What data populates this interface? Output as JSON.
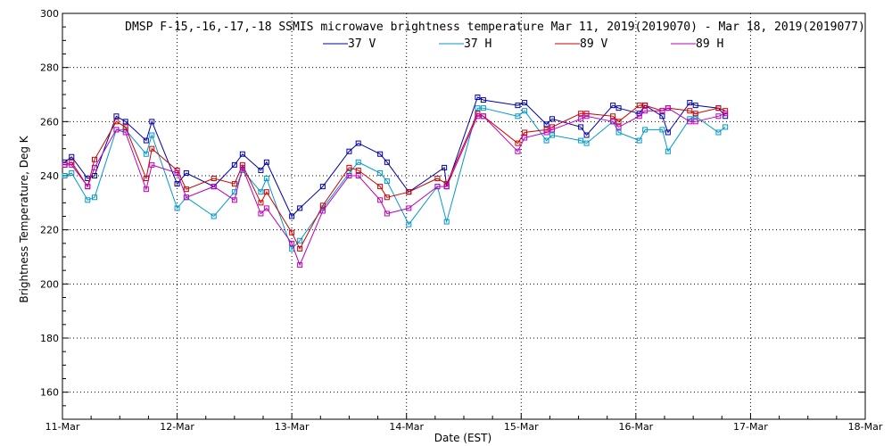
{
  "chart_data": {
    "type": "line",
    "title": "DMSP F-15,-16,-17,-18 SSMIS microwave brightness temperature Mar 11, 2019(2019070) - Mar 18, 2019(2019077)",
    "xlabel": "Date (EST)",
    "ylabel": "Brightness Temperature, Deg K",
    "xlim": [
      0,
      7
    ],
    "ylim": [
      150,
      300
    ],
    "x_ticks": [
      0,
      1,
      2,
      3,
      4,
      5,
      6,
      7
    ],
    "x_tick_labels": [
      "11-Mar",
      "12-Mar",
      "13-Mar",
      "14-Mar",
      "15-Mar",
      "16-Mar",
      "17-Mar",
      "18-Mar"
    ],
    "y_ticks": [
      160,
      180,
      200,
      220,
      240,
      260,
      280,
      300
    ],
    "grid": true,
    "legend_position": "top",
    "series": [
      {
        "name": "37 V",
        "color": "#0000aa",
        "x": [
          0.02,
          0.08,
          0.22,
          0.28,
          0.47,
          0.55,
          0.73,
          0.78,
          1.0,
          1.08,
          1.32,
          1.5,
          1.57,
          1.73,
          1.78,
          2.0,
          2.07,
          2.27,
          2.5,
          2.58,
          2.77,
          2.83,
          3.02,
          3.33,
          3.35,
          3.62,
          3.67,
          3.97,
          4.03,
          4.22,
          4.27,
          4.52,
          4.57,
          4.8,
          4.85,
          5.03,
          5.08,
          5.23,
          5.28,
          5.47,
          5.52,
          5.72,
          5.78
        ],
        "y": [
          245,
          247,
          239,
          240,
          262,
          260,
          253,
          260,
          237,
          241,
          236,
          244,
          248,
          242,
          245,
          225,
          228,
          236,
          249,
          252,
          248,
          245,
          234,
          243,
          236,
          269,
          268,
          266,
          267,
          259,
          261,
          258,
          255,
          266,
          265,
          263,
          266,
          262,
          256,
          267,
          266,
          265,
          262
        ]
      },
      {
        "name": "37 H",
        "color": "#0099cc",
        "x": [
          0.02,
          0.08,
          0.22,
          0.28,
          0.47,
          0.55,
          0.73,
          0.78,
          1.0,
          1.08,
          1.32,
          1.5,
          1.57,
          1.73,
          1.78,
          2.0,
          2.07,
          2.27,
          2.5,
          2.58,
          2.77,
          2.83,
          3.02,
          3.27,
          3.35,
          3.62,
          3.67,
          3.97,
          4.03,
          4.22,
          4.27,
          4.52,
          4.57,
          4.8,
          4.85,
          5.03,
          5.08,
          5.23,
          5.28,
          5.47,
          5.52,
          5.72,
          5.78
        ],
        "y": [
          240,
          241,
          231,
          232,
          257,
          257,
          248,
          255,
          228,
          232,
          225,
          234,
          242,
          234,
          239,
          213,
          216,
          228,
          241,
          245,
          241,
          238,
          222,
          236,
          223,
          265,
          265,
          262,
          264,
          253,
          255,
          253,
          252,
          260,
          256,
          253,
          257,
          257,
          249,
          261,
          262,
          256,
          258
        ]
      },
      {
        "name": "89 V",
        "color": "#cc0000",
        "x": [
          0.02,
          0.08,
          0.22,
          0.28,
          0.47,
          0.55,
          0.73,
          0.78,
          1.0,
          1.08,
          1.32,
          1.5,
          1.57,
          1.73,
          1.78,
          2.0,
          2.07,
          2.27,
          2.5,
          2.58,
          2.77,
          2.83,
          3.02,
          3.27,
          3.35,
          3.62,
          3.67,
          3.97,
          4.03,
          4.22,
          4.27,
          4.52,
          4.57,
          4.8,
          4.85,
          5.03,
          5.08,
          5.23,
          5.28,
          5.47,
          5.52,
          5.72,
          5.78
        ],
        "y": [
          244,
          245,
          236,
          246,
          260,
          258,
          239,
          250,
          242,
          235,
          239,
          237,
          244,
          230,
          234,
          219,
          213,
          229,
          243,
          242,
          236,
          232,
          234,
          239,
          237,
          263,
          262,
          252,
          256,
          257,
          258,
          263,
          263,
          262,
          260,
          266,
          266,
          264,
          265,
          264,
          263,
          265,
          264
        ]
      },
      {
        "name": "89 H",
        "color": "#bb00bb",
        "x": [
          0.02,
          0.08,
          0.22,
          0.28,
          0.47,
          0.55,
          0.73,
          0.78,
          1.0,
          1.08,
          1.32,
          1.5,
          1.57,
          1.73,
          1.78,
          2.0,
          2.07,
          2.27,
          2.5,
          2.58,
          2.77,
          2.83,
          3.02,
          3.27,
          3.35,
          3.62,
          3.67,
          3.97,
          4.03,
          4.22,
          4.27,
          4.52,
          4.57,
          4.8,
          4.85,
          5.03,
          5.08,
          5.23,
          5.28,
          5.47,
          5.52,
          5.72,
          5.78
        ],
        "y": [
          244,
          244,
          236,
          243,
          257,
          256,
          235,
          244,
          241,
          232,
          236,
          231,
          243,
          226,
          228,
          215,
          207,
          227,
          240,
          240,
          231,
          226,
          228,
          236,
          236,
          262,
          262,
          249,
          254,
          256,
          257,
          261,
          262,
          260,
          258,
          262,
          264,
          264,
          265,
          260,
          260,
          262,
          263
        ]
      }
    ]
  }
}
